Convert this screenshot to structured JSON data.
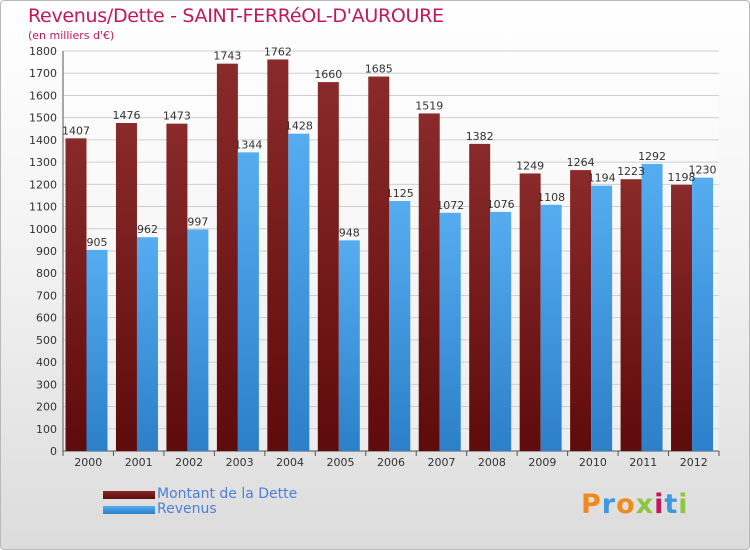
{
  "header": {
    "title": "Revenus/Dette - SAINT-FERRéOL-D'AUROURE",
    "subtitle": "(en milliers d'€)"
  },
  "legend": {
    "items": [
      {
        "label": "Montant de la Dette",
        "color": "#7b1e1e"
      },
      {
        "label": "Revenus",
        "color": "#3d98e0"
      }
    ]
  },
  "logo": {
    "text": "Proxiti",
    "letters": [
      "P",
      "r",
      "o",
      "x",
      "i",
      "t",
      "i"
    ],
    "colors": [
      "#f08a1c",
      "#3d98e0",
      "#f08a1c",
      "#8dc63f",
      "#c2185b",
      "#3d98e0",
      "#8dc63f"
    ]
  },
  "colors": {
    "title": "#c2185b",
    "dette": "#7b1e1e",
    "revenus": "#3d98e0"
  },
  "chart_data": {
    "type": "bar",
    "categories": [
      "2000",
      "2001",
      "2002",
      "2003",
      "2004",
      "2005",
      "2006",
      "2007",
      "2008",
      "2009",
      "2010",
      "2011",
      "2012"
    ],
    "series": [
      {
        "name": "Montant de la Dette",
        "values": [
          1407,
          1476,
          1473,
          1743,
          1762,
          1660,
          1685,
          1519,
          1382,
          1249,
          1264,
          1223,
          1198
        ]
      },
      {
        "name": "Revenus",
        "values": [
          905,
          962,
          997,
          1344,
          1428,
          948,
          1125,
          1072,
          1076,
          1108,
          1194,
          1292,
          1230
        ]
      }
    ],
    "data_labels": [
      [
        "1407",
        "1476",
        "1473",
        "1743",
        "1762",
        "1660",
        "1685",
        "1519",
        "1382",
        "1249",
        "1264",
        "1223",
        "1198"
      ],
      [
        "905",
        "962",
        "997",
        "1344",
        "1428",
        "948",
        "1125",
        "1072",
        "1076",
        "1108",
        "1194",
        "1292",
        "1230"
      ]
    ],
    "title": "Revenus/Dette - SAINT-FERRéOL-D'AUROURE",
    "subtitle": "(en milliers d'€)",
    "xlabel": "",
    "ylabel": "",
    "ylim": [
      0,
      1800
    ],
    "yticks": [
      "0",
      "100",
      "200",
      "300",
      "400",
      "500",
      "600",
      "700",
      "800",
      "900",
      "1000",
      "1100",
      "1200",
      "1300",
      "1400",
      "1500",
      "1600",
      "1700",
      "1800"
    ],
    "grid": true,
    "legend_position": "bottom-left"
  }
}
